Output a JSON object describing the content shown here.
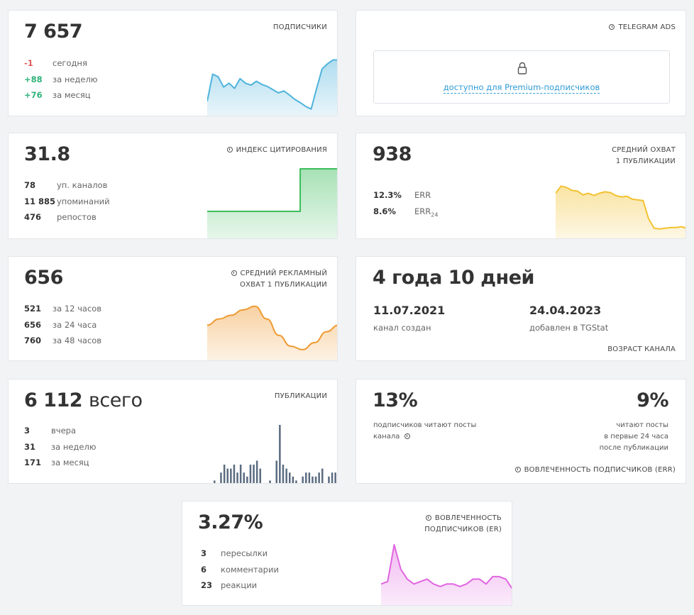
{
  "subscribers": {
    "value": "7 657",
    "title": "ПОДПИСЧИКИ",
    "stats": [
      {
        "num": "-1",
        "label": "сегодня",
        "tone": "neg"
      },
      {
        "num": "+88",
        "label": "за неделю",
        "tone": "pos"
      },
      {
        "num": "+76",
        "label": "за месяц",
        "tone": "pos"
      }
    ],
    "color": "#4fb3dc",
    "chart_data": {
      "type": "area",
      "values": [
        20,
        62,
        58,
        42,
        48,
        40,
        55,
        48,
        45,
        51,
        46,
        43,
        38,
        33,
        36,
        30,
        23,
        18,
        12,
        8,
        40,
        70,
        78,
        84,
        84
      ]
    }
  },
  "telegram_ads": {
    "title": "TELEGRAM ADS",
    "lock_text": "доступно для Premium-подписчиков"
  },
  "citation": {
    "value": "31.8",
    "title": "ИНДЕКС ЦИТИРОВАНИЯ",
    "stats": [
      {
        "num": "78",
        "label": "уп. каналов"
      },
      {
        "num": "11 885",
        "label": "упоминаний"
      },
      {
        "num": "476",
        "label": "репостов"
      }
    ],
    "color": "#3dbd5c",
    "chart_data": {
      "type": "area",
      "values": [
        31.3,
        31.3,
        31.3,
        31.3,
        31.3,
        31.3,
        31.3,
        31.3,
        31.3,
        31.3,
        31.3,
        31.3,
        31.3,
        31.3,
        31.3,
        31.3,
        31.3,
        31.8,
        31.8,
        31.8,
        31.8,
        31.8,
        31.8,
        31.8,
        31.8
      ]
    }
  },
  "avg_reach": {
    "value": "938",
    "title_line1": "СРЕДНИЙ ОХВАТ",
    "title_line2": "1 ПУБЛИКАЦИИ",
    "stats": [
      {
        "num": "12.3%",
        "label": "ERR"
      },
      {
        "num": "8.6%",
        "label": "ERR",
        "sub": "24"
      }
    ],
    "color": "#f2c230",
    "chart_data": {
      "type": "area",
      "values": [
        60,
        70,
        68,
        64,
        63,
        58,
        60,
        57,
        60,
        62,
        61,
        57,
        55,
        56,
        52,
        51,
        50,
        25,
        12,
        11,
        12,
        13,
        13,
        14,
        12
      ]
    }
  },
  "ad_reach": {
    "value": "656",
    "title_line1": "СРЕДНИЙ РЕКЛАМНЫЙ",
    "title_line2": "ОХВАТ 1 ПУБЛИКАЦИИ",
    "stats": [
      {
        "num": "521",
        "label": "за 12 часов"
      },
      {
        "num": "656",
        "label": "за 24 часа"
      },
      {
        "num": "760",
        "label": "за 48 часов"
      }
    ],
    "color": "#ef9a32",
    "chart_data": {
      "type": "area",
      "values": [
        656,
        690,
        710,
        740,
        760,
        690,
        600,
        540,
        521,
        560,
        620,
        656
      ]
    }
  },
  "channel_age": {
    "value": "4 года 10 дней",
    "created_date": "11.07.2021",
    "created_label": "канал создан",
    "added_date": "24.04.2023",
    "added_label": "добавлен в TGStat",
    "title": "ВОЗРАСТ КАНАЛА"
  },
  "publications": {
    "value": "6 112",
    "suffix": "всего",
    "title": "ПУБЛИКАЦИИ",
    "stats": [
      {
        "num": "3",
        "label": "вчера"
      },
      {
        "num": "31",
        "label": "за неделю"
      },
      {
        "num": "171",
        "label": "за месяц"
      }
    ],
    "color": "#5a6b80",
    "chart_data": {
      "type": "bar",
      "values": [
        1,
        0,
        3,
        5,
        4,
        4,
        5,
        3,
        5,
        3,
        2,
        5,
        5,
        6,
        4,
        0,
        0,
        1,
        0,
        6,
        15,
        5,
        4,
        3,
        2,
        1,
        0,
        2,
        3,
        3,
        2,
        2,
        3,
        4,
        0,
        2,
        3,
        3
      ]
    }
  },
  "err": {
    "left_value": "13%",
    "left_line1": "подписчиков читают посты",
    "left_line2": "канала",
    "right_value": "9%",
    "right_line1": "читают посты",
    "right_line2": "в первые 24 часа",
    "right_line3": "после публикации",
    "title": "ВОВЛЕЧЕННОСТЬ ПОДПИСЧИКОВ (ERR)"
  },
  "er": {
    "value": "3.27%",
    "title_line1": "ВОВЛЕЧЕННОСТЬ",
    "title_line2": "ПОДПИСЧИКОВ (ER)",
    "stats": [
      {
        "num": "3",
        "label": "пересылки"
      },
      {
        "num": "6",
        "label": "комментарии"
      },
      {
        "num": "23",
        "label": "реакции"
      }
    ],
    "color": "#e065e0",
    "chart_data": {
      "type": "area",
      "values": [
        3.0,
        3.1,
        4.6,
        3.6,
        3.2,
        3.0,
        3.1,
        3.2,
        3.0,
        2.9,
        3.0,
        3.0,
        2.9,
        3.0,
        3.2,
        3.2,
        3.0,
        3.3,
        3.3,
        3.2,
        2.8
      ]
    }
  }
}
